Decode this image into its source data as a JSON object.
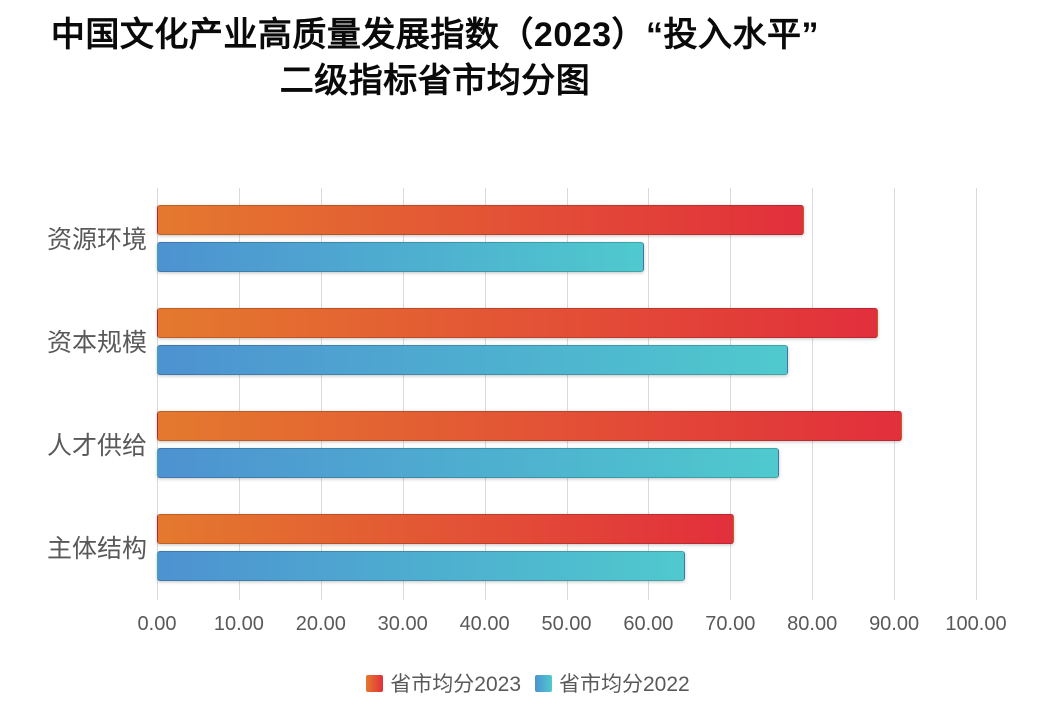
{
  "title": {
    "line1": "中国文化产业高质量发展指数（2023）“投入水平”",
    "line2": "二级指标省市均分图"
  },
  "chart_data": {
    "type": "bar",
    "orientation": "horizontal",
    "title": "中国文化产业高质量发展指数（2023）“投入水平”二级指标省市均分图",
    "categories": [
      "资源环境",
      "资本规模",
      "人才供给",
      "主体结构"
    ],
    "series": [
      {
        "name": "省市均分2023",
        "values": [
          79.0,
          88.0,
          91.0,
          70.5
        ],
        "color_start": "#e4792e",
        "color_end": "#e22f3c"
      },
      {
        "name": "省市均分2022",
        "values": [
          59.5,
          77.0,
          76.0,
          64.5
        ],
        "color_start": "#4d92d1",
        "color_end": "#4fc9ce"
      }
    ],
    "xlim": [
      0,
      100
    ],
    "x_ticks": [
      {
        "value": 0,
        "label": "0.00"
      },
      {
        "value": 10,
        "label": "10.00"
      },
      {
        "value": 20,
        "label": "20.00"
      },
      {
        "value": 30,
        "label": "30.00"
      },
      {
        "value": 40,
        "label": "40.00"
      },
      {
        "value": 50,
        "label": "50.00"
      },
      {
        "value": 60,
        "label": "60.00"
      },
      {
        "value": 70,
        "label": "70.00"
      },
      {
        "value": 80,
        "label": "80.00"
      },
      {
        "value": 90,
        "label": "90.00"
      },
      {
        "value": 100,
        "label": "100.00"
      }
    ],
    "grid": true,
    "legend_position": "bottom",
    "colors": {
      "gridline": "#d9d9d9",
      "axis_text": "#595959",
      "title_text": "#0a0a0a",
      "background": "#ffffff"
    }
  }
}
